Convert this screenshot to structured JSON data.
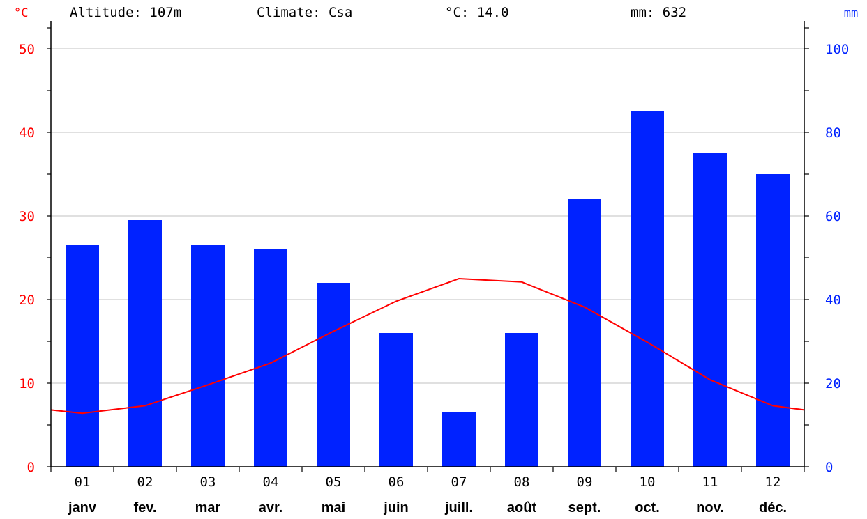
{
  "header": {
    "left_unit": "°C",
    "right_unit": "mm",
    "altitude": "Altitude: 107m",
    "climate": "Climate: Csa",
    "mean_temp": "°C: 14.0",
    "total_precip": "mm: 632"
  },
  "colors": {
    "temperature": "#ff0000",
    "precipitation": "#0022ff",
    "grid": "#c0c0c0",
    "axis": "#000000"
  },
  "chart_data": {
    "type": "bar",
    "categories": [
      "01",
      "02",
      "03",
      "04",
      "05",
      "06",
      "07",
      "08",
      "09",
      "10",
      "11",
      "12"
    ],
    "month_labels": [
      "janv",
      "fev.",
      "mar",
      "avr.",
      "mai",
      "juin",
      "juill.",
      "août",
      "sept.",
      "oct.",
      "nov.",
      "déc."
    ],
    "series": [
      {
        "type": "bar",
        "axis": "right",
        "values": [
          53,
          59,
          53,
          52,
          44,
          32,
          13,
          32,
          64,
          85,
          75,
          70
        ]
      },
      {
        "type": "line",
        "axis": "left",
        "values": [
          6.4,
          7.3,
          9.8,
          12.4,
          16.2,
          19.8,
          22.5,
          22.1,
          19.1,
          14.9,
          10.4,
          7.3
        ],
        "boundary_start": 6.8,
        "boundary_end": 6.8
      }
    ],
    "y_left": {
      "ylim": [
        0,
        50
      ],
      "ticks": [
        0,
        10,
        20,
        30,
        40,
        50
      ]
    },
    "y_right": {
      "ylim": [
        0,
        100
      ],
      "ticks": [
        0,
        20,
        40,
        60,
        80,
        100
      ]
    },
    "grid": true
  }
}
